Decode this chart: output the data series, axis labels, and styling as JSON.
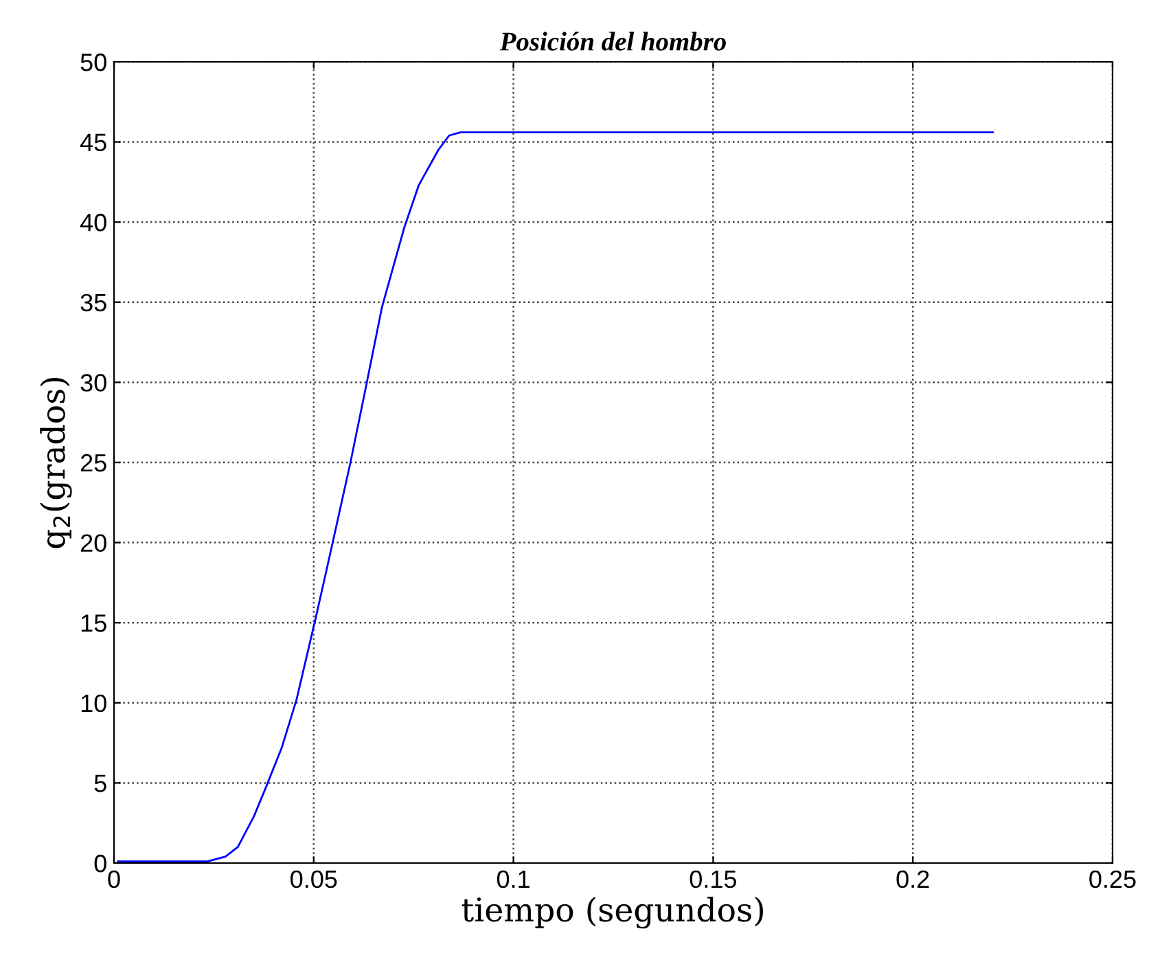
{
  "chart_data": {
    "type": "line",
    "title": "Posición del hombro",
    "xlabel": "tiempo (segundos)",
    "ylabel": "q$_{2}$(grados)",
    "xlim": [
      0,
      0.25
    ],
    "xticks": [
      0,
      0.05,
      0.1,
      0.15,
      0.2,
      0.25
    ],
    "ylim": [
      0,
      50
    ],
    "yticks": [
      0,
      5,
      10,
      15,
      20,
      25,
      30,
      35,
      40,
      45,
      50
    ],
    "grid": true,
    "line_style": "solid",
    "marker": "none",
    "series": [
      {
        "color": "#0000ff",
        "x": [
          0.001,
          0.0234,
          0.0279,
          0.031,
          0.035,
          0.038,
          0.042,
          0.0457,
          0.0506,
          0.0543,
          0.0592,
          0.0629,
          0.0671,
          0.0726,
          0.0763,
          0.0812,
          0.0839,
          0.0867,
          0.22
        ],
        "values": [
          0.1,
          0.1,
          0.4,
          1.0,
          2.9,
          4.7,
          7.2,
          10.2,
          15.4,
          19.5,
          25.0,
          29.5,
          34.7,
          39.6,
          42.3,
          44.5,
          45.4,
          45.6,
          45.6
        ]
      }
    ]
  }
}
